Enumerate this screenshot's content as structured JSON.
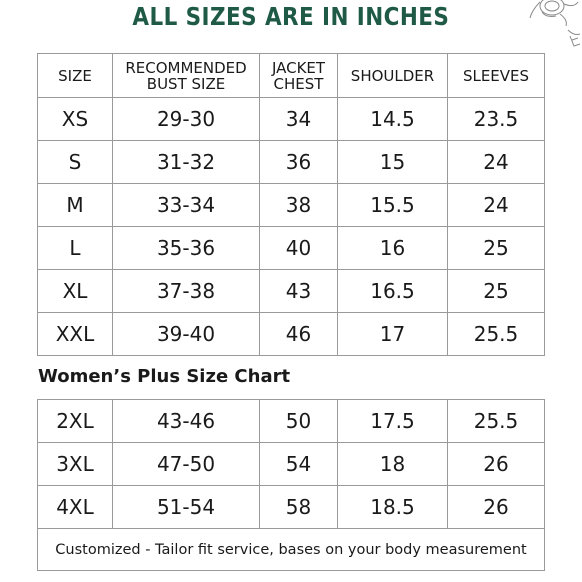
{
  "heading": "ALL SIZES ARE IN INCHES",
  "main_table": {
    "headers": {
      "size": "SIZE",
      "bust_line1": "RECOMMENDED",
      "bust_line2": "BUST SIZE",
      "chest_line1": "JACKET",
      "chest_line2": "CHEST",
      "shoulder": "SHOULDER",
      "sleeves": "SLEEVES"
    },
    "rows": [
      {
        "size": "XS",
        "bust": "29-30",
        "chest": "34",
        "shoulder": "14.5",
        "sleeves": "23.5"
      },
      {
        "size": "S",
        "bust": "31-32",
        "chest": "36",
        "shoulder": "15",
        "sleeves": "24"
      },
      {
        "size": "M",
        "bust": "33-34",
        "chest": "38",
        "shoulder": "15.5",
        "sleeves": "24"
      },
      {
        "size": "L",
        "bust": "35-36",
        "chest": "40",
        "shoulder": "16",
        "sleeves": "25"
      },
      {
        "size": "XL",
        "bust": "37-38",
        "chest": "43",
        "shoulder": "16.5",
        "sleeves": "25"
      },
      {
        "size": "XXL",
        "bust": "39-40",
        "chest": "46",
        "shoulder": "17",
        "sleeves": "25.5"
      }
    ]
  },
  "plus_title": "Women’s Plus Size Chart",
  "plus_table": {
    "rows": [
      {
        "size": "2XL",
        "bust": "43-46",
        "chest": "50",
        "shoulder": "17.5",
        "sleeves": "25.5"
      },
      {
        "size": "3XL",
        "bust": "47-50",
        "chest": "54",
        "shoulder": "18",
        "sleeves": "26"
      },
      {
        "size": "4XL",
        "bust": "51-54",
        "chest": "58",
        "shoulder": "18.5",
        "sleeves": "26"
      }
    ],
    "note": "Customized - Tailor fit service, bases on your body measurement"
  },
  "colors": {
    "heading": "#1f5a46",
    "border": "#9a9a9a",
    "text": "#1a1a1a"
  },
  "decoration_icon": "sketch-illustration-icon"
}
